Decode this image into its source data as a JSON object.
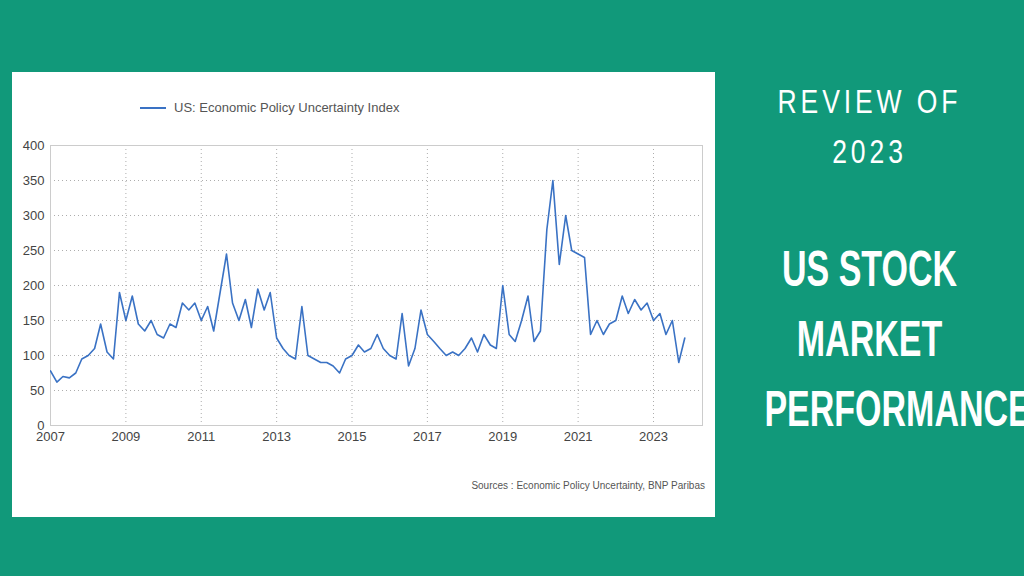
{
  "chart_data": {
    "type": "line",
    "x": [
      2007,
      2007.17,
      2007.33,
      2007.5,
      2007.67,
      2007.83,
      2008,
      2008.17,
      2008.33,
      2008.5,
      2008.67,
      2008.83,
      2009,
      2009.17,
      2009.33,
      2009.5,
      2009.67,
      2009.83,
      2010,
      2010.17,
      2010.33,
      2010.5,
      2010.67,
      2010.83,
      2011,
      2011.17,
      2011.33,
      2011.5,
      2011.67,
      2011.83,
      2012,
      2012.17,
      2012.33,
      2012.5,
      2012.67,
      2012.83,
      2013,
      2013.17,
      2013.33,
      2013.5,
      2013.67,
      2013.83,
      2014,
      2014.17,
      2014.33,
      2014.5,
      2014.67,
      2014.83,
      2015,
      2015.17,
      2015.33,
      2015.5,
      2015.67,
      2015.83,
      2016,
      2016.17,
      2016.33,
      2016.5,
      2016.67,
      2016.83,
      2017,
      2017.17,
      2017.33,
      2017.5,
      2017.67,
      2017.83,
      2018,
      2018.17,
      2018.33,
      2018.5,
      2018.67,
      2018.83,
      2019,
      2019.17,
      2019.33,
      2019.5,
      2019.67,
      2019.83,
      2020,
      2020.17,
      2020.33,
      2020.5,
      2020.67,
      2020.83,
      2021,
      2021.17,
      2021.33,
      2021.5,
      2021.67,
      2021.83,
      2022,
      2022.17,
      2022.33,
      2022.5,
      2022.67,
      2022.83,
      2023,
      2023.17,
      2023.33,
      2023.5,
      2023.67,
      2023.83
    ],
    "series": [
      {
        "name": "US: Economic Policy Uncertainty Index",
        "color": "#3a72c4",
        "values": [
          78,
          62,
          70,
          68,
          75,
          95,
          100,
          110,
          145,
          105,
          95,
          190,
          150,
          185,
          145,
          135,
          150,
          130,
          125,
          145,
          140,
          175,
          165,
          175,
          150,
          170,
          135,
          190,
          245,
          175,
          150,
          180,
          140,
          195,
          165,
          190,
          125,
          110,
          100,
          95,
          170,
          100,
          95,
          90,
          90,
          85,
          75,
          95,
          100,
          115,
          105,
          110,
          130,
          110,
          100,
          95,
          160,
          85,
          110,
          165,
          130,
          120,
          110,
          100,
          105,
          100,
          110,
          125,
          105,
          130,
          115,
          110,
          200,
          130,
          120,
          150,
          185,
          120,
          135,
          280,
          350,
          230,
          300,
          250,
          245,
          240,
          130,
          150,
          130,
          145,
          150,
          185,
          160,
          180,
          165,
          175,
          150,
          160,
          130,
          150,
          90,
          125
        ]
      }
    ],
    "xlim": [
      2007,
      2024.3
    ],
    "xticks": [
      2007,
      2009,
      2011,
      2013,
      2015,
      2017,
      2019,
      2021,
      2023
    ],
    "ylim": [
      0,
      400
    ],
    "yticks": [
      0,
      50,
      100,
      150,
      200,
      250,
      300,
      350,
      400
    ],
    "grid": true,
    "legend": "top",
    "caption": "Sources : Economic Policy Uncertainty, BNP Paribas"
  },
  "banner": {
    "heading_lines": [
      "REVIEW OF",
      "2023"
    ],
    "title_lines": [
      "US STOCK",
      "MARKET",
      "PERFORMANCE"
    ]
  }
}
